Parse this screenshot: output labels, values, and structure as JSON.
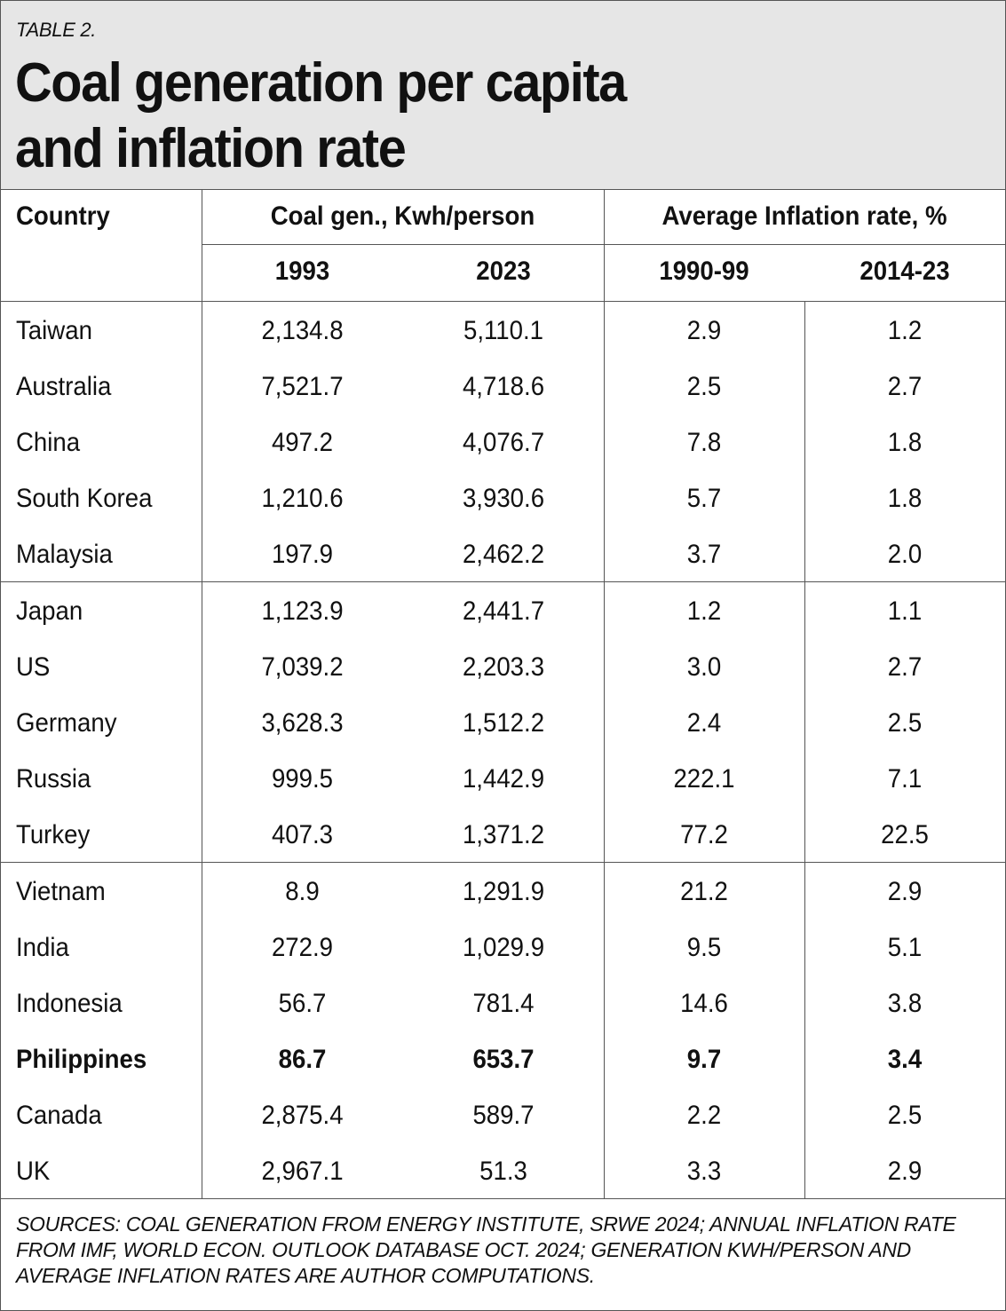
{
  "header": {
    "label": "TABLE 2.",
    "title_line1": "Coal generation per capita",
    "title_line2": "and inflation rate"
  },
  "table": {
    "country_header": "Country",
    "group1_header": "Coal gen., Kwh/person",
    "group2_header": "Average Inflation rate, %",
    "subheaders": [
      "1993",
      "2023",
      "1990-99",
      "2014-23"
    ],
    "rows": [
      {
        "country": "Taiwan",
        "c1993": "2,134.8",
        "c2023": "5,110.1",
        "i9099": "2.9",
        "i1423": "1.2"
      },
      {
        "country": "Australia",
        "c1993": "7,521.7",
        "c2023": "4,718.6",
        "i9099": "2.5",
        "i1423": "2.7"
      },
      {
        "country": "China",
        "c1993": "497.2",
        "c2023": "4,076.7",
        "i9099": "7.8",
        "i1423": "1.8"
      },
      {
        "country": "South Korea",
        "c1993": "1,210.6",
        "c2023": "3,930.6",
        "i9099": "5.7",
        "i1423": "1.8"
      },
      {
        "country": "Malaysia",
        "c1993": "197.9",
        "c2023": "2,462.2",
        "i9099": "3.7",
        "i1423": "2.0"
      },
      {
        "country": "Japan",
        "c1993": "1,123.9",
        "c2023": "2,441.7",
        "i9099": "1.2",
        "i1423": "1.1"
      },
      {
        "country": "US",
        "c1993": "7,039.2",
        "c2023": "2,203.3",
        "i9099": "3.0",
        "i1423": "2.7"
      },
      {
        "country": "Germany",
        "c1993": "3,628.3",
        "c2023": "1,512.2",
        "i9099": "2.4",
        "i1423": "2.5"
      },
      {
        "country": "Russia",
        "c1993": "999.5",
        "c2023": "1,442.9",
        "i9099": "222.1",
        "i1423": "7.1"
      },
      {
        "country": "Turkey",
        "c1993": "407.3",
        "c2023": "1,371.2",
        "i9099": "77.2",
        "i1423": "22.5"
      },
      {
        "country": "Vietnam",
        "c1993": "8.9",
        "c2023": "1,291.9",
        "i9099": "21.2",
        "i1423": "2.9"
      },
      {
        "country": "India",
        "c1993": "272.9",
        "c2023": "1,029.9",
        "i9099": "9.5",
        "i1423": "5.1"
      },
      {
        "country": "Indonesia",
        "c1993": "56.7",
        "c2023": "781.4",
        "i9099": "14.6",
        "i1423": "3.8"
      },
      {
        "country": "Philippines",
        "c1993": "86.7",
        "c2023": "653.7",
        "i9099": "9.7",
        "i1423": "3.4"
      },
      {
        "country": "Canada",
        "c1993": "2,875.4",
        "c2023": "589.7",
        "i9099": "2.2",
        "i1423": "2.5"
      },
      {
        "country": "UK",
        "c1993": "2,967.1",
        "c2023": "51.3",
        "i9099": "3.3",
        "i1423": "2.9"
      }
    ]
  },
  "footer": {
    "sources": "SOURCES: COAL GENERATION FROM ENERGY INSTITUTE, SRWE 2024; ANNUAL INFLATION RATE FROM IMF, WORLD ECON. OUTLOOK DATABASE OCT. 2024; GENERATION KWH/PERSON AND AVERAGE INFLATION RATES ARE AUTHOR COMPUTATIONS."
  },
  "colors": {
    "header_bg": "#e6e6e6",
    "rule": "#555555",
    "text": "#111111"
  }
}
